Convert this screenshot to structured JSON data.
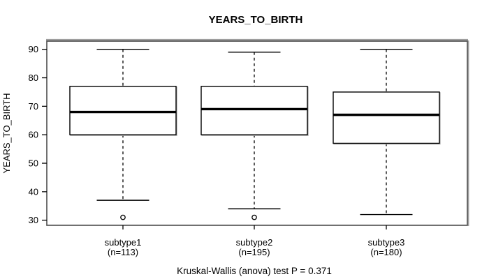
{
  "title": "YEARS_TO_BIRTH",
  "y_axis": {
    "label": "YEARS_TO_BIRTH",
    "ticks": [
      30,
      40,
      50,
      60,
      70,
      80,
      90
    ]
  },
  "caption": "Kruskal-Wallis (anova) test P = 0.371",
  "colors": {
    "line": "#000000",
    "frame": "#4d4d4d",
    "frame_highlight": "#9e9e9e",
    "background": "#ffffff"
  },
  "chart_data": {
    "type": "boxplot",
    "title": "YEARS_TO_BIRTH",
    "xlabel": "",
    "ylabel": "YEARS_TO_BIRTH",
    "ylim": [
      28,
      93
    ],
    "yticks": [
      30,
      40,
      50,
      60,
      70,
      80,
      90
    ],
    "grid": false,
    "legend": "none",
    "footnote": "Kruskal-Wallis (anova) test P = 0.371",
    "groups": [
      {
        "label": "subtype1",
        "sublabel": "(n=113)",
        "n": 113,
        "whisker_low": 37,
        "q1": 60,
        "median": 68,
        "q3": 77,
        "whisker_high": 90,
        "outliers": [
          31
        ]
      },
      {
        "label": "subtype2",
        "sublabel": "(n=195)",
        "n": 195,
        "whisker_low": 34,
        "q1": 60,
        "median": 69,
        "q3": 77,
        "whisker_high": 89,
        "outliers": [
          31
        ]
      },
      {
        "label": "subtype3",
        "sublabel": "(n=180)",
        "n": 180,
        "whisker_low": 32,
        "q1": 57,
        "median": 67,
        "q3": 75,
        "whisker_high": 90,
        "outliers": []
      }
    ]
  }
}
